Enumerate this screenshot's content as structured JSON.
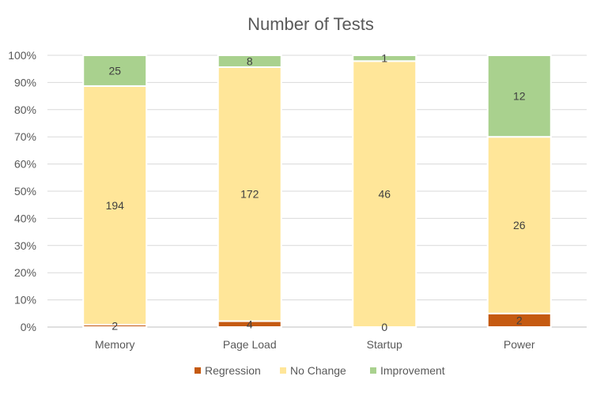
{
  "chart_data": {
    "type": "bar",
    "stacked": "percent",
    "title": "Number of Tests",
    "categories": [
      "Memory",
      "Page Load",
      "Startup",
      "Power"
    ],
    "series": [
      {
        "name": "Regression",
        "color": "#c55a11",
        "values": [
          2,
          4,
          0,
          2
        ]
      },
      {
        "name": "No Change",
        "color": "#ffe699",
        "values": [
          194,
          172,
          46,
          26
        ]
      },
      {
        "name": "Improvement",
        "color": "#a9d18e",
        "values": [
          25,
          8,
          1,
          12
        ]
      }
    ],
    "y_ticks": [
      "0%",
      "10%",
      "20%",
      "30%",
      "40%",
      "50%",
      "60%",
      "70%",
      "80%",
      "90%",
      "100%"
    ],
    "ylim": [
      0,
      100
    ],
    "grid": true,
    "legend_position": "bottom"
  }
}
